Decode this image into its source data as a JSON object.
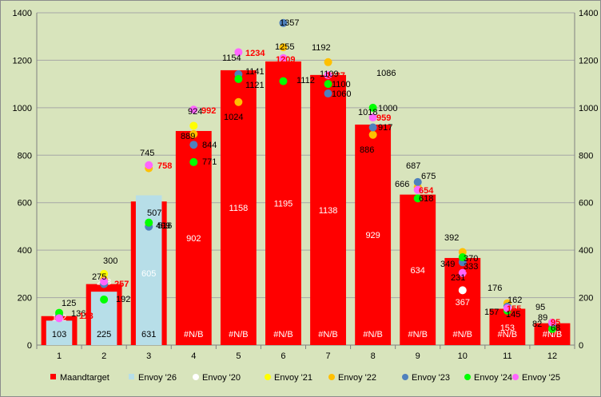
{
  "chart_data": {
    "type": "bar",
    "categories": [
      "1",
      "2",
      "3",
      "4",
      "5",
      "6",
      "7",
      "8",
      "9",
      "10",
      "11",
      "12"
    ],
    "ylim": [
      0,
      1400
    ],
    "yticks": [
      0,
      200,
      400,
      600,
      800,
      1000,
      1200,
      1400
    ],
    "grid": true,
    "legend_position": "bottom",
    "bar_series": [
      {
        "name": "Maandtarget",
        "color": "#ff0000",
        "values": [
          122,
          257,
          605,
          902,
          1158,
          1195,
          1138,
          929,
          634,
          367,
          153,
          92
        ],
        "labels": [
          "122",
          "",
          "605",
          "902",
          "1158",
          "1195",
          "1138",
          "929",
          "634",
          "367",
          "153",
          ""
        ]
      },
      {
        "name": "Envoy '26",
        "color": "#b7dee8",
        "values": [
          103,
          225,
          631,
          null,
          null,
          null,
          null,
          null,
          null,
          null,
          null,
          null
        ],
        "labels": [
          "103",
          "225",
          "631",
          "#N/B",
          "#N/B",
          "#N/B",
          "#N/B",
          "#N/B",
          "#N/B",
          "#N/B",
          "#N/B",
          "#N/B"
        ],
        "overlay_labels": [
          "",
          "268",
          "",
          "",
          "",
          "",
          "",
          "",
          "",
          "",
          "",
          ""
        ]
      }
    ],
    "point_series": [
      {
        "name": "Envoy '20",
        "color": "#ffffff",
        "values": [
          null,
          null,
          null,
          null,
          null,
          null,
          null,
          null,
          null,
          231,
          null,
          null
        ]
      },
      {
        "name": "Envoy '21",
        "color": "#ffff00",
        "values": [
          null,
          300,
          507,
          924,
          null,
          null,
          null,
          null,
          null,
          null,
          null,
          null
        ]
      },
      {
        "name": "Envoy '22",
        "color": "#ffc000",
        "values": [
          null,
          275,
          745,
          889,
          1024,
          1255,
          1192,
          886,
          666,
          392,
          176,
          95
        ]
      },
      {
        "name": "Envoy '23",
        "color": "#4f81bd",
        "values": [
          125,
          257,
          499,
          844,
          1141,
          1357,
          1060,
          917,
          687,
          349,
          162,
          89
        ]
      },
      {
        "name": "Envoy '24",
        "color": "#00ff00",
        "values": [
          136,
          192,
          516,
          771,
          1121,
          1112,
          1100,
          1000,
          618,
          370,
          145,
          68
        ]
      },
      {
        "name": "Envoy '25",
        "color": "#ff66ff",
        "values": [
          113,
          268,
          758,
          992,
          1234,
          1209,
          1137,
          959,
          654,
          304,
          155,
          95
        ]
      }
    ],
    "point_labels": [
      {
        "text": "125",
        "color": "#000000"
      },
      {
        "text": "136",
        "color": "#000000"
      },
      {
        "text": "113",
        "color": "#ff0000"
      },
      {
        "text": "300",
        "color": "#000000"
      },
      {
        "text": "275",
        "color": "#000000"
      },
      {
        "text": "257",
        "color": "#ff0000"
      },
      {
        "text": "192",
        "color": "#000000"
      },
      {
        "text": "745",
        "color": "#000000"
      },
      {
        "text": "758",
        "color": "#ff0000"
      },
      {
        "text": "507",
        "color": "#000000"
      },
      {
        "text": "516",
        "color": "#000000"
      },
      {
        "text": "499",
        "color": "#000000"
      },
      {
        "text": "924",
        "color": "#000000"
      },
      {
        "text": "992",
        "color": "#ff0000"
      },
      {
        "text": "889",
        "color": "#000000"
      },
      {
        "text": "844",
        "color": "#000000"
      },
      {
        "text": "771",
        "color": "#000000"
      },
      {
        "text": "1234",
        "color": "#ff0000"
      },
      {
        "text": "1154",
        "color": "#000000"
      },
      {
        "text": "1141",
        "color": "#000000"
      },
      {
        "text": "1121",
        "color": "#000000"
      },
      {
        "text": "1024",
        "color": "#000000"
      },
      {
        "text": "1357",
        "color": "#000000"
      },
      {
        "text": "1255",
        "color": "#000000"
      },
      {
        "text": "1209",
        "color": "#ff0000"
      },
      {
        "text": "1112",
        "color": "#000000"
      },
      {
        "text": "1192",
        "color": "#000000"
      },
      {
        "text": "1137",
        "color": "#ff0000"
      },
      {
        "text": "1109",
        "color": "#000000"
      },
      {
        "text": "1100",
        "color": "#000000"
      },
      {
        "text": "1060",
        "color": "#000000"
      },
      {
        "text": "1086",
        "color": "#000000"
      },
      {
        "text": "1018",
        "color": "#000000"
      },
      {
        "text": "1000",
        "color": "#000000"
      },
      {
        "text": "959",
        "color": "#ff0000"
      },
      {
        "text": "917",
        "color": "#000000"
      },
      {
        "text": "886",
        "color": "#000000"
      },
      {
        "text": "687",
        "color": "#000000"
      },
      {
        "text": "675",
        "color": "#000000"
      },
      {
        "text": "666",
        "color": "#000000"
      },
      {
        "text": "654",
        "color": "#ff0000"
      },
      {
        "text": "618",
        "color": "#000000"
      },
      {
        "text": "392",
        "color": "#000000"
      },
      {
        "text": "370",
        "color": "#000000"
      },
      {
        "text": "349",
        "color": "#000000"
      },
      {
        "text": "333",
        "color": "#000000"
      },
      {
        "text": "304",
        "color": "#ff0000"
      },
      {
        "text": "231",
        "color": "#000000"
      },
      {
        "text": "176",
        "color": "#000000"
      },
      {
        "text": "162",
        "color": "#000000"
      },
      {
        "text": "157",
        "color": "#000000"
      },
      {
        "text": "155",
        "color": "#ff0000"
      },
      {
        "text": "145",
        "color": "#000000"
      },
      {
        "text": "95",
        "color": "#000000"
      },
      {
        "text": "95",
        "color": "#ff0000"
      },
      {
        "text": "89",
        "color": "#000000"
      },
      {
        "text": "82",
        "color": "#000000"
      },
      {
        "text": "68",
        "color": "#000000"
      }
    ],
    "legend": [
      {
        "name": "Maandtarget",
        "marker": "square",
        "color": "#ff0000"
      },
      {
        "name": "Envoy '26",
        "marker": "square",
        "color": "#b7dee8"
      },
      {
        "name": "Envoy '20",
        "marker": "circle",
        "color": "#ffffff"
      },
      {
        "name": "Envoy '21",
        "marker": "circle",
        "color": "#ffff00"
      },
      {
        "name": "Envoy '22",
        "marker": "circle",
        "color": "#ffc000"
      },
      {
        "name": "Envoy '23",
        "marker": "circle",
        "color": "#4f81bd"
      },
      {
        "name": "Envoy '24",
        "marker": "circle",
        "color": "#00ff00"
      },
      {
        "name": "Envoy '25",
        "marker": "circle",
        "color": "#ff66ff"
      }
    ]
  }
}
